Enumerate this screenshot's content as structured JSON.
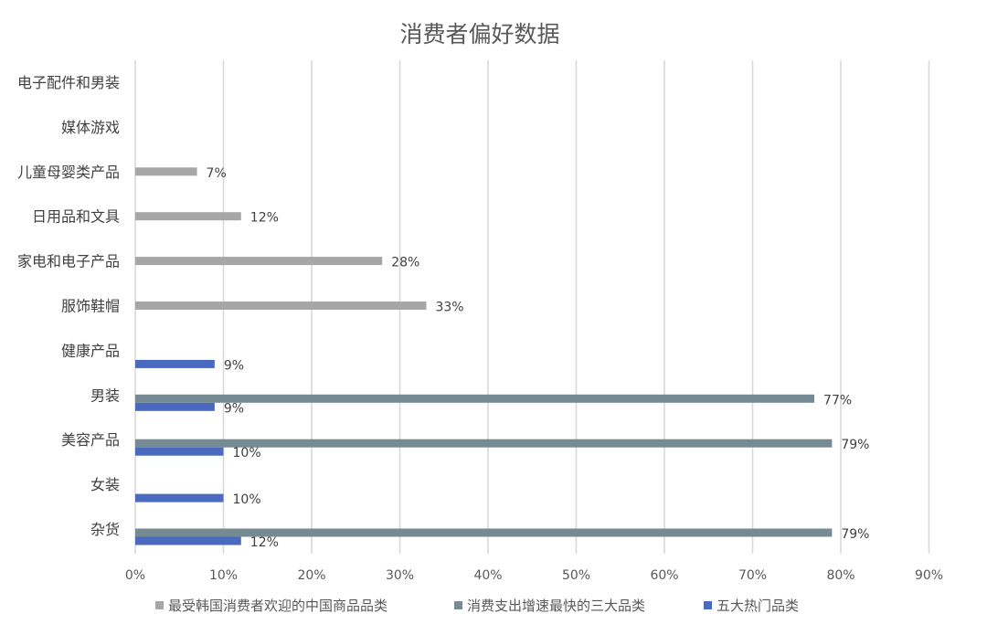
{
  "chart_data": {
    "type": "bar",
    "orientation": "horizontal",
    "title": "消费者偏好数据",
    "xlabel": "",
    "ylabel": "",
    "xlim": [
      0,
      90
    ],
    "x_ticks": [
      "0%",
      "10%",
      "20%",
      "30%",
      "40%",
      "50%",
      "60%",
      "70%",
      "80%",
      "90%"
    ],
    "grid": "vertical",
    "legend_position": "bottom",
    "categories": [
      "电子配件和男装",
      "媒体游戏",
      "儿童母婴类产品",
      "日用品和文具",
      "家电和电子产品",
      "服饰鞋帽",
      "健康产品",
      "男装",
      "美容产品",
      "女装",
      "杂货"
    ],
    "series": [
      {
        "name": "最受韩国消费者欢迎的中国商品品类",
        "color": "#a6a6a6",
        "values": [
          null,
          null,
          7,
          12,
          28,
          33,
          null,
          null,
          null,
          null,
          null
        ],
        "labels": [
          "",
          "",
          "7%",
          "12%",
          "28%",
          "33%",
          "",
          "",
          "",
          "",
          ""
        ]
      },
      {
        "name": "消费支出增速最快的三大品类",
        "color": "#768a94",
        "values": [
          null,
          null,
          null,
          null,
          null,
          null,
          null,
          77,
          79,
          null,
          79
        ],
        "labels": [
          "",
          "",
          "",
          "",
          "",
          "",
          "",
          "77%",
          "79%",
          "",
          "79%"
        ]
      },
      {
        "name": "五大热门品类",
        "color": "#4a6abf",
        "values": [
          null,
          null,
          null,
          null,
          null,
          null,
          9,
          9,
          10,
          10,
          12
        ],
        "labels": [
          "",
          "",
          "",
          "",
          "",
          "",
          "9%",
          "9%",
          "10%",
          "10%",
          "12%"
        ]
      }
    ]
  }
}
